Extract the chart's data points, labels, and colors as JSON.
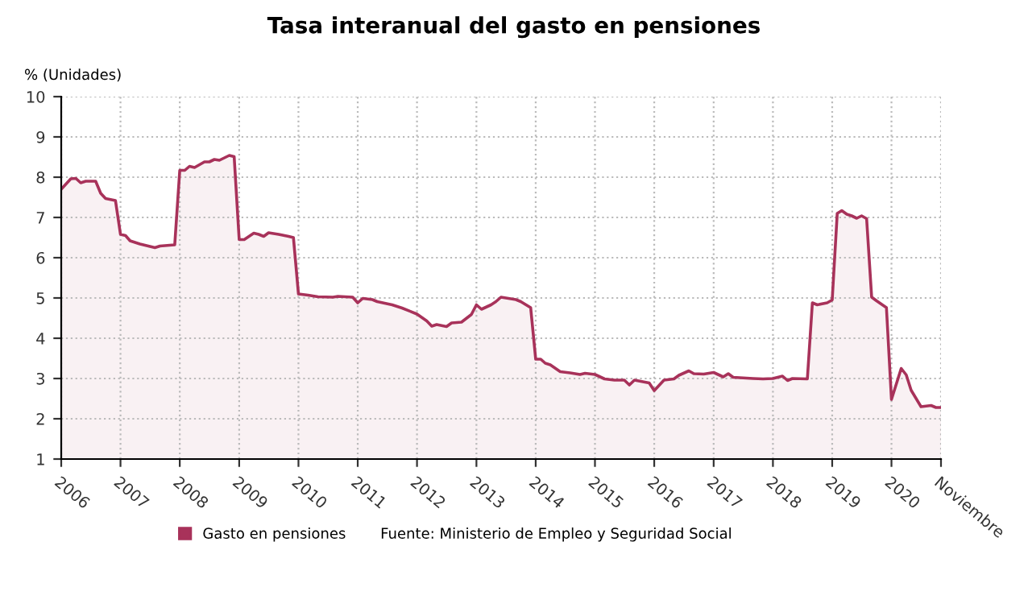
{
  "chart_data": {
    "type": "area",
    "title": "Tasa interanual del gasto en pensiones",
    "ylabel": "% (Unidades)",
    "x": [
      "2006-01",
      "2006-03",
      "2006-04",
      "2006-05",
      "2006-06",
      "2006-08",
      "2006-09",
      "2006-10",
      "2006-12",
      "2007-01",
      "2007-02",
      "2007-03",
      "2007-05",
      "2007-08",
      "2007-09",
      "2007-12",
      "2008-01",
      "2008-02",
      "2008-03",
      "2008-04",
      "2008-06",
      "2008-07",
      "2008-08",
      "2008-09",
      "2008-11",
      "2008-12",
      "2009-01",
      "2009-02",
      "2009-04",
      "2009-05",
      "2009-06",
      "2009-07",
      "2009-09",
      "2009-11",
      "2009-12",
      "2010-01",
      "2010-03",
      "2010-05",
      "2010-08",
      "2010-09",
      "2010-12",
      "2011-01",
      "2011-02",
      "2011-04",
      "2011-05",
      "2011-08",
      "2011-10",
      "2012-01",
      "2012-03",
      "2012-04",
      "2012-05",
      "2012-07",
      "2012-08",
      "2012-10",
      "2012-12",
      "2013-01",
      "2013-02",
      "2013-04",
      "2013-05",
      "2013-06",
      "2013-09",
      "2013-10",
      "2013-12",
      "2014-01",
      "2014-02",
      "2014-03",
      "2014-04",
      "2014-06",
      "2014-08",
      "2014-10",
      "2014-11",
      "2015-01",
      "2015-03",
      "2015-05",
      "2015-07",
      "2015-08",
      "2015-09",
      "2015-12",
      "2016-01",
      "2016-03",
      "2016-05",
      "2016-06",
      "2016-08",
      "2016-09",
      "2016-11",
      "2017-01",
      "2017-03",
      "2017-04",
      "2017-05",
      "2017-09",
      "2017-11",
      "2018-01",
      "2018-03",
      "2018-04",
      "2018-05",
      "2018-08",
      "2018-09",
      "2018-10",
      "2018-12",
      "2019-01",
      "2019-02",
      "2019-03",
      "2019-04",
      "2019-05",
      "2019-06",
      "2019-07",
      "2019-08",
      "2019-09",
      "2019-10",
      "2019-12",
      "2020-01",
      "2020-03",
      "2020-04",
      "2020-05",
      "2020-07",
      "2020-09",
      "2020-10",
      "2020-11"
    ],
    "series": [
      {
        "name": "Gasto en pensiones",
        "color": "#a8325a",
        "values": [
          7.7,
          7.96,
          7.97,
          7.86,
          7.9,
          7.9,
          7.6,
          7.47,
          7.42,
          6.58,
          6.55,
          6.42,
          6.34,
          6.25,
          6.29,
          6.32,
          8.17,
          8.17,
          8.27,
          8.24,
          8.38,
          8.38,
          8.44,
          8.42,
          8.54,
          8.51,
          6.45,
          6.45,
          6.61,
          6.58,
          6.53,
          6.62,
          6.58,
          6.53,
          6.5,
          5.1,
          5.07,
          5.03,
          5.02,
          5.04,
          5.02,
          4.88,
          4.99,
          4.96,
          4.91,
          4.83,
          4.75,
          4.6,
          4.43,
          4.3,
          4.34,
          4.29,
          4.38,
          4.4,
          4.59,
          4.83,
          4.72,
          4.83,
          4.91,
          5.02,
          4.96,
          4.91,
          4.76,
          3.48,
          3.48,
          3.38,
          3.34,
          3.17,
          3.14,
          3.1,
          3.13,
          3.1,
          2.99,
          2.96,
          2.96,
          2.84,
          2.96,
          2.89,
          2.7,
          2.96,
          2.99,
          3.08,
          3.19,
          3.12,
          3.11,
          3.15,
          3.04,
          3.12,
          3.03,
          3.0,
          2.99,
          3.0,
          3.06,
          2.95,
          3.0,
          2.99,
          4.88,
          4.83,
          4.88,
          4.95,
          7.1,
          7.17,
          7.08,
          7.04,
          6.98,
          7.04,
          6.97,
          5.02,
          4.93,
          4.76,
          2.48,
          3.25,
          3.09,
          2.71,
          2.3,
          2.33,
          2.28,
          2.28
        ]
      }
    ],
    "xlim": [
      "2006-01",
      "2020-11"
    ],
    "xticks": [
      {
        "value": "2006-01",
        "label": "2006"
      },
      {
        "value": "2007-01",
        "label": "2007"
      },
      {
        "value": "2008-01",
        "label": "2008"
      },
      {
        "value": "2009-01",
        "label": "2009"
      },
      {
        "value": "2010-01",
        "label": "2010"
      },
      {
        "value": "2011-01",
        "label": "2011"
      },
      {
        "value": "2012-01",
        "label": "2012"
      },
      {
        "value": "2013-01",
        "label": "2013"
      },
      {
        "value": "2014-01",
        "label": "2014"
      },
      {
        "value": "2015-01",
        "label": "2015"
      },
      {
        "value": "2016-01",
        "label": "2016"
      },
      {
        "value": "2017-01",
        "label": "2017"
      },
      {
        "value": "2018-01",
        "label": "2018"
      },
      {
        "value": "2019-01",
        "label": "2019"
      },
      {
        "value": "2020-01",
        "label": "2020"
      },
      {
        "value": "2020-11",
        "label": "Noviembre"
      }
    ],
    "ylim": [
      1,
      10
    ],
    "yticks": [
      1,
      2,
      3,
      4,
      5,
      6,
      7,
      8,
      9,
      10
    ],
    "grid": true,
    "legend": "bottom",
    "marker": "none",
    "line_style": "solid",
    "annotations": [
      "Fuente: Ministerio de Empleo y Seguridad Social"
    ]
  }
}
